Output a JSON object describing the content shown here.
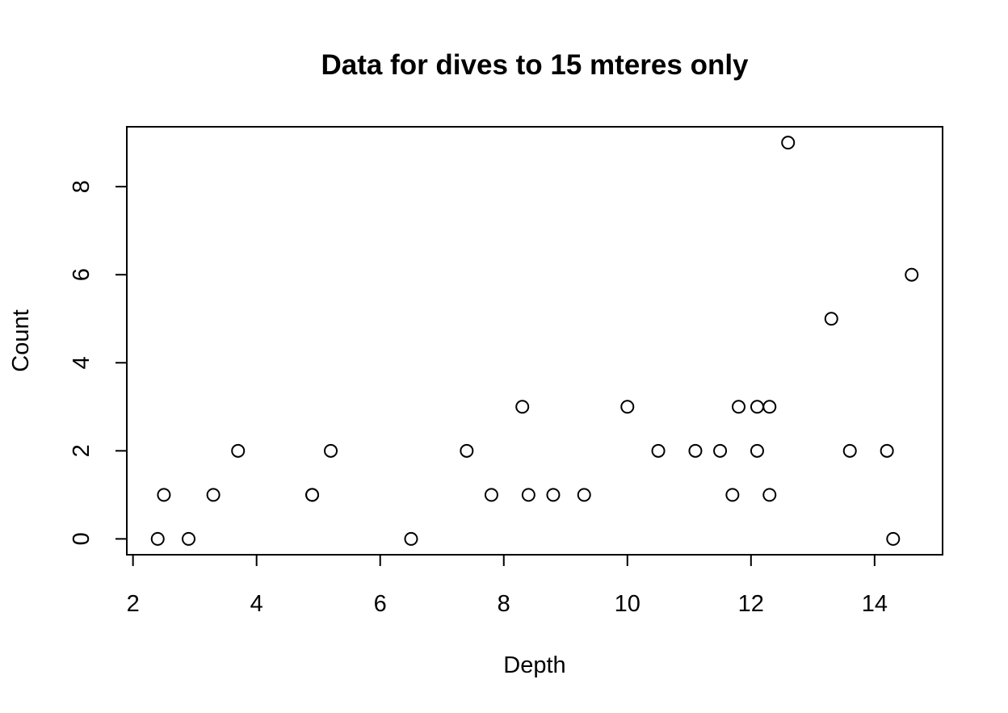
{
  "chart_data": {
    "type": "scatter",
    "title": "Data for dives to 15 mteres only",
    "xlabel": "Depth",
    "ylabel": "Count",
    "xlim": [
      1.9,
      15.1
    ],
    "ylim": [
      -0.36,
      9.36
    ],
    "x_ticks": [
      "2",
      "4",
      "6",
      "8",
      "10",
      "12",
      "14"
    ],
    "y_ticks": [
      "0",
      "2",
      "4",
      "6",
      "8"
    ],
    "grid": false,
    "marker": "open-circle",
    "points": [
      {
        "x": 2.4,
        "y": 0
      },
      {
        "x": 2.5,
        "y": 1
      },
      {
        "x": 2.9,
        "y": 0
      },
      {
        "x": 3.3,
        "y": 1
      },
      {
        "x": 3.7,
        "y": 2
      },
      {
        "x": 4.9,
        "y": 1
      },
      {
        "x": 4.9,
        "y": 1
      },
      {
        "x": 5.2,
        "y": 2
      },
      {
        "x": 6.5,
        "y": 0
      },
      {
        "x": 7.4,
        "y": 2
      },
      {
        "x": 7.8,
        "y": 1
      },
      {
        "x": 8.3,
        "y": 3
      },
      {
        "x": 8.4,
        "y": 1
      },
      {
        "x": 8.8,
        "y": 1
      },
      {
        "x": 9.3,
        "y": 1
      },
      {
        "x": 10.0,
        "y": 3
      },
      {
        "x": 10.5,
        "y": 2
      },
      {
        "x": 11.1,
        "y": 2
      },
      {
        "x": 11.5,
        "y": 2
      },
      {
        "x": 11.7,
        "y": 1
      },
      {
        "x": 11.8,
        "y": 3
      },
      {
        "x": 12.1,
        "y": 3
      },
      {
        "x": 12.1,
        "y": 2
      },
      {
        "x": 12.3,
        "y": 3
      },
      {
        "x": 12.3,
        "y": 1
      },
      {
        "x": 12.6,
        "y": 9
      },
      {
        "x": 13.3,
        "y": 5
      },
      {
        "x": 13.6,
        "y": 2
      },
      {
        "x": 14.2,
        "y": 2
      },
      {
        "x": 14.3,
        "y": 0
      },
      {
        "x": 14.6,
        "y": 6
      }
    ]
  }
}
